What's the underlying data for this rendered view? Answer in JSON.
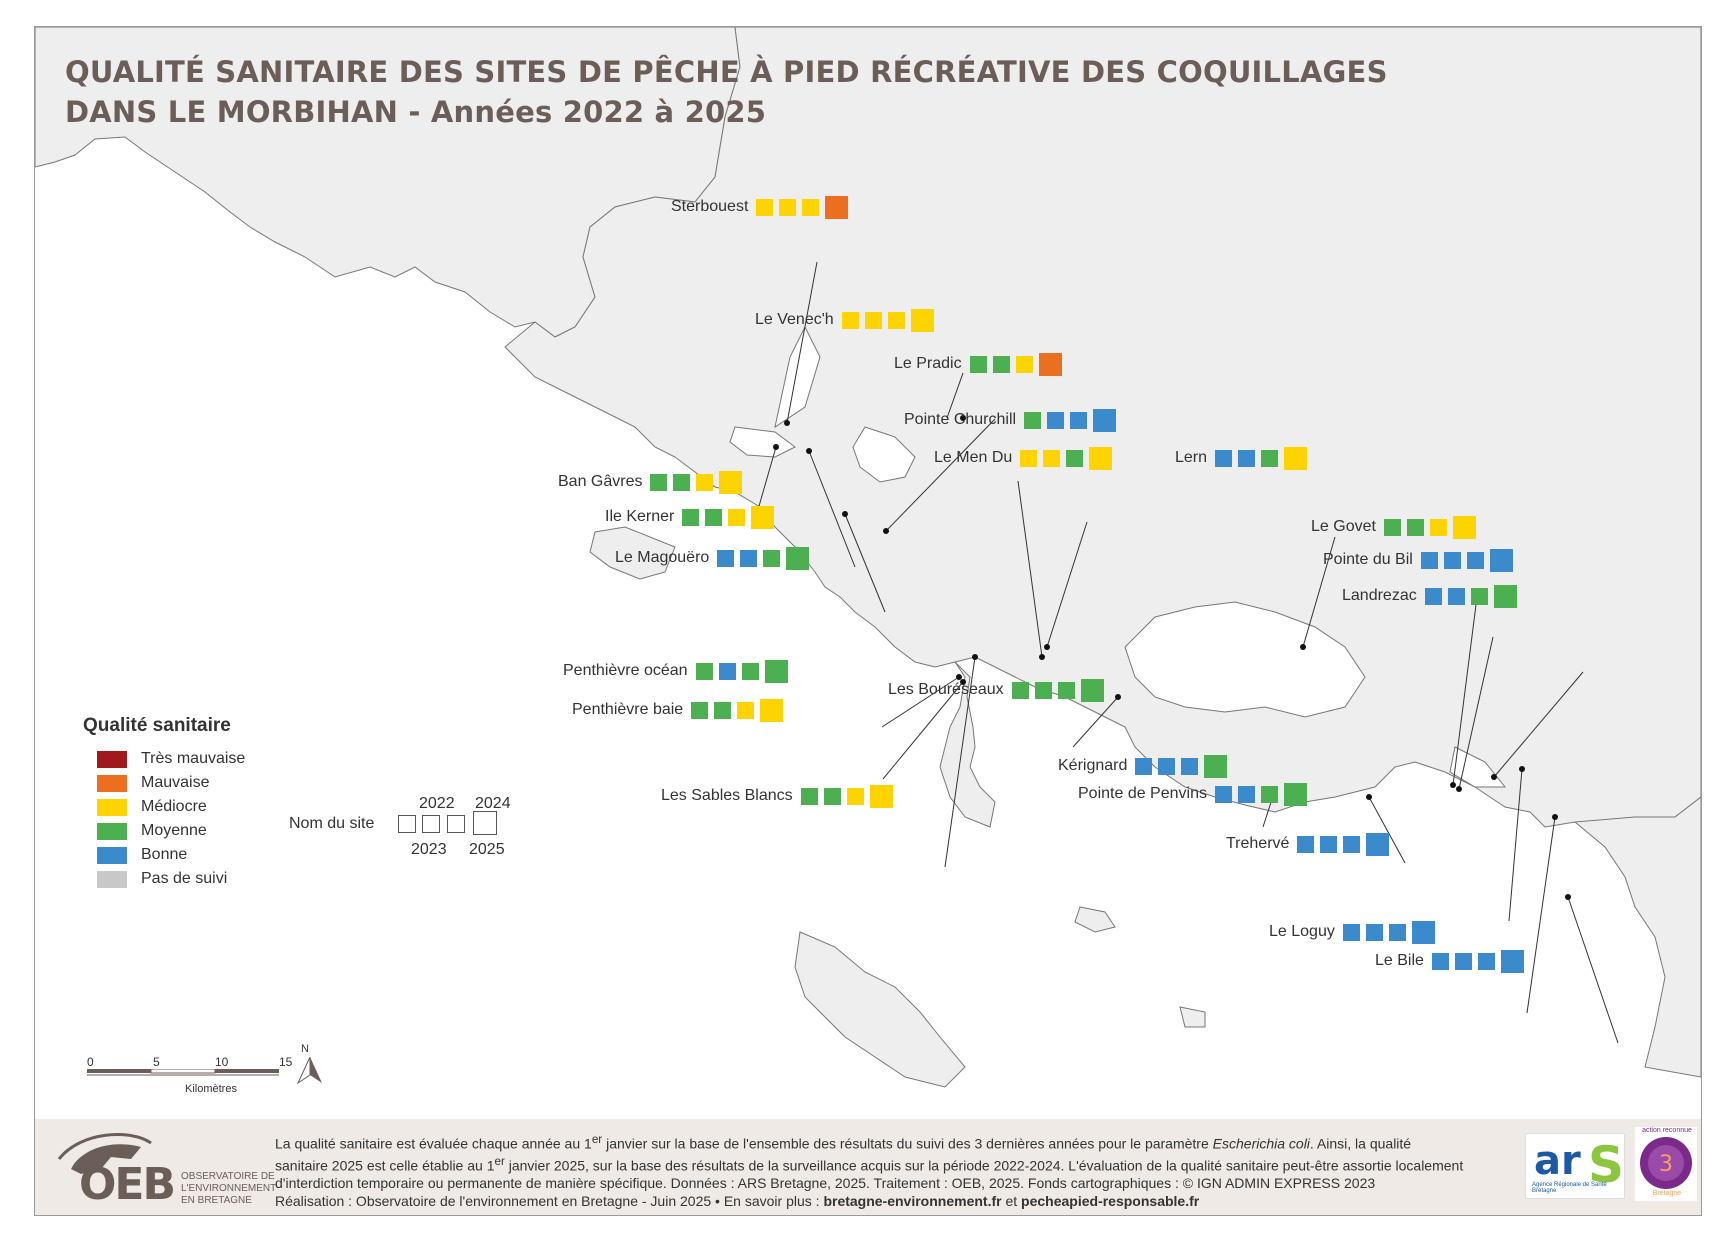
{
  "title": {
    "line1": "QUALITÉ SANITAIRE DES SITES DE PÊCHE À PIED RÉCRÉATIVE DES COQUILLAGES",
    "line2": "DANS LE MORBIHAN - Années 2022 à 2025"
  },
  "colors": {
    "Très mauvaise": "#a0191c",
    "Mauvaise": "#ec6e1f",
    "Médiocre": "#fdd300",
    "Moyenne": "#4caf50",
    "Bonne": "#3b8bcc",
    "Pas de suivi": "#c8c8c8"
  },
  "legend": {
    "title": "Qualité sanitaire",
    "items": [
      "Très mauvaise",
      "Mauvaise",
      "Médiocre",
      "Moyenne",
      "Bonne",
      "Pas de suivi"
    ]
  },
  "key": {
    "site_label": "Nom du site",
    "y2022": "2022",
    "y2023": "2023",
    "y2024": "2024",
    "y2025": "2025"
  },
  "scale": {
    "ticks": [
      "0",
      "5",
      "10",
      "15"
    ],
    "unit": "Kilomètres",
    "north": "N"
  },
  "sites": [
    {
      "name": "Sterbouest",
      "q": [
        "Médiocre",
        "Médiocre",
        "Médiocre",
        "Mauvaise"
      ]
    },
    {
      "name": "Le Venec'h",
      "q": [
        "Médiocre",
        "Médiocre",
        "Médiocre",
        "Médiocre"
      ]
    },
    {
      "name": "Le Pradic",
      "q": [
        "Moyenne",
        "Moyenne",
        "Médiocre",
        "Mauvaise"
      ]
    },
    {
      "name": "Pointe Churchill",
      "q": [
        "Moyenne",
        "Bonne",
        "Bonne",
        "Bonne"
      ]
    },
    {
      "name": "Le Men Du",
      "q": [
        "Médiocre",
        "Médiocre",
        "Moyenne",
        "Médiocre"
      ]
    },
    {
      "name": "Lern",
      "q": [
        "Bonne",
        "Bonne",
        "Moyenne",
        "Médiocre"
      ]
    },
    {
      "name": "Ban Gâvres",
      "q": [
        "Moyenne",
        "Moyenne",
        "Médiocre",
        "Médiocre"
      ]
    },
    {
      "name": "Ile Kerner",
      "q": [
        "Moyenne",
        "Moyenne",
        "Médiocre",
        "Médiocre"
      ]
    },
    {
      "name": "Le Magouëro",
      "q": [
        "Bonne",
        "Bonne",
        "Moyenne",
        "Moyenne"
      ]
    },
    {
      "name": "Le Govet",
      "q": [
        "Moyenne",
        "Moyenne",
        "Médiocre",
        "Médiocre"
      ]
    },
    {
      "name": "Pointe du Bil",
      "q": [
        "Bonne",
        "Bonne",
        "Bonne",
        "Bonne"
      ]
    },
    {
      "name": "Landrezac",
      "q": [
        "Bonne",
        "Bonne",
        "Moyenne",
        "Moyenne"
      ]
    },
    {
      "name": "Penthièvre océan",
      "q": [
        "Moyenne",
        "Bonne",
        "Moyenne",
        "Moyenne"
      ]
    },
    {
      "name": "Penthièvre baie",
      "q": [
        "Moyenne",
        "Moyenne",
        "Médiocre",
        "Médiocre"
      ]
    },
    {
      "name": "Les Bouréseaux",
      "q": [
        "Moyenne",
        "Moyenne",
        "Moyenne",
        "Moyenne"
      ]
    },
    {
      "name": "Kérignard",
      "q": [
        "Bonne",
        "Bonne",
        "Bonne",
        "Moyenne"
      ]
    },
    {
      "name": "Pointe de Penvins",
      "q": [
        "Bonne",
        "Bonne",
        "Moyenne",
        "Moyenne"
      ]
    },
    {
      "name": "Les Sables Blancs",
      "q": [
        "Moyenne",
        "Moyenne",
        "Médiocre",
        "Médiocre"
      ]
    },
    {
      "name": "Trehervé",
      "q": [
        "Bonne",
        "Bonne",
        "Bonne",
        "Bonne"
      ]
    },
    {
      "name": "Le Loguy",
      "q": [
        "Bonne",
        "Bonne",
        "Bonne",
        "Bonne"
      ]
    },
    {
      "name": "Le Bile",
      "q": [
        "Bonne",
        "Bonne",
        "Bonne",
        "Bonne"
      ]
    }
  ],
  "footer": {
    "line1a": "La qualité sanitaire est évaluée chaque année au 1",
    "sup": "er",
    "line1b": " janvier sur la base de l'ensemble des résultats du suivi des 3 dernières années pour le paramètre ",
    "param": "Escherichia coli",
    "line1c": ". Ainsi, la qualité sanitaire 2025 est celle établie au 1",
    "line1d": " janvier 2025, sur la base des résultats de la surveillance acquis sur la période 2022-2024. L'évaluation de la qualité sanitaire peut-être assortie localement d'interdiction temporaire ou permanente de manière spécifique. Données : ARS Bretagne, 2025. Traitement : OEB, 2025. Fonds cartographiques : © IGN ADMIN EXPRESS 2023",
    "line2a": "Réalisation : Observatoire de l'environnement en Bretagne - Juin 2025 • En savoir plus : ",
    "link1": "bretagne-environnement.fr",
    "and": " et ",
    "link2": "pecheapied-responsable.fr"
  },
  "logos": {
    "oeb_big": "OEB",
    "oeb_small": "Observatoire de l'environnement en Bretagne",
    "ars_a": "ar",
    "ars_s": "S",
    "ars_sub": "Agence Régionale de Santé Bretagne",
    "badge_top": "action reconnue",
    "badge_bottom": "Bretagne"
  }
}
